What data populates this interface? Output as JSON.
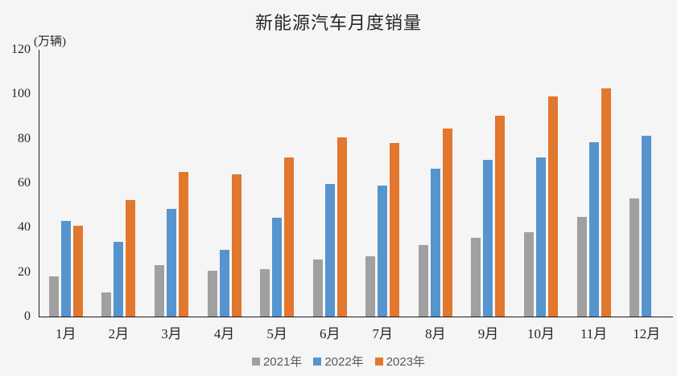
{
  "title": "新能源汽车月度销量",
  "y_axis_unit": "(万辆)",
  "colors": {
    "series_2021": "#a0a0a0",
    "series_2022": "#5694ce",
    "series_2023": "#e2772e",
    "background": "#f5f5f5",
    "axis": "#1a1a1a",
    "legend_text": "#595959"
  },
  "chart_data": {
    "type": "bar",
    "title": "新能源汽车月度销量",
    "ylabel": "(万辆)",
    "xlabel": "",
    "categories": [
      "1月",
      "2月",
      "3月",
      "4月",
      "5月",
      "6月",
      "7月",
      "8月",
      "9月",
      "10月",
      "11月",
      "12月"
    ],
    "series": [
      {
        "name": "2021年",
        "color": "#a0a0a0",
        "values": [
          18,
          11,
          23,
          20.5,
          21.5,
          25.5,
          27,
          32,
          35.5,
          38,
          45,
          53
        ]
      },
      {
        "name": "2022年",
        "color": "#5694ce",
        "values": [
          43,
          33.5,
          48.5,
          30,
          44.5,
          59.5,
          59,
          66.5,
          70.5,
          71.5,
          78.5,
          81.5
        ]
      },
      {
        "name": "2023年",
        "color": "#e2772e",
        "values": [
          41,
          52.5,
          65,
          64,
          71.5,
          80.5,
          78,
          84.5,
          90.5,
          99,
          102.5,
          null
        ]
      }
    ],
    "ylim": [
      0,
      120
    ],
    "yticks": [
      0,
      20,
      40,
      60,
      80,
      100,
      120
    ],
    "grid": false,
    "legend_position": "bottom"
  }
}
